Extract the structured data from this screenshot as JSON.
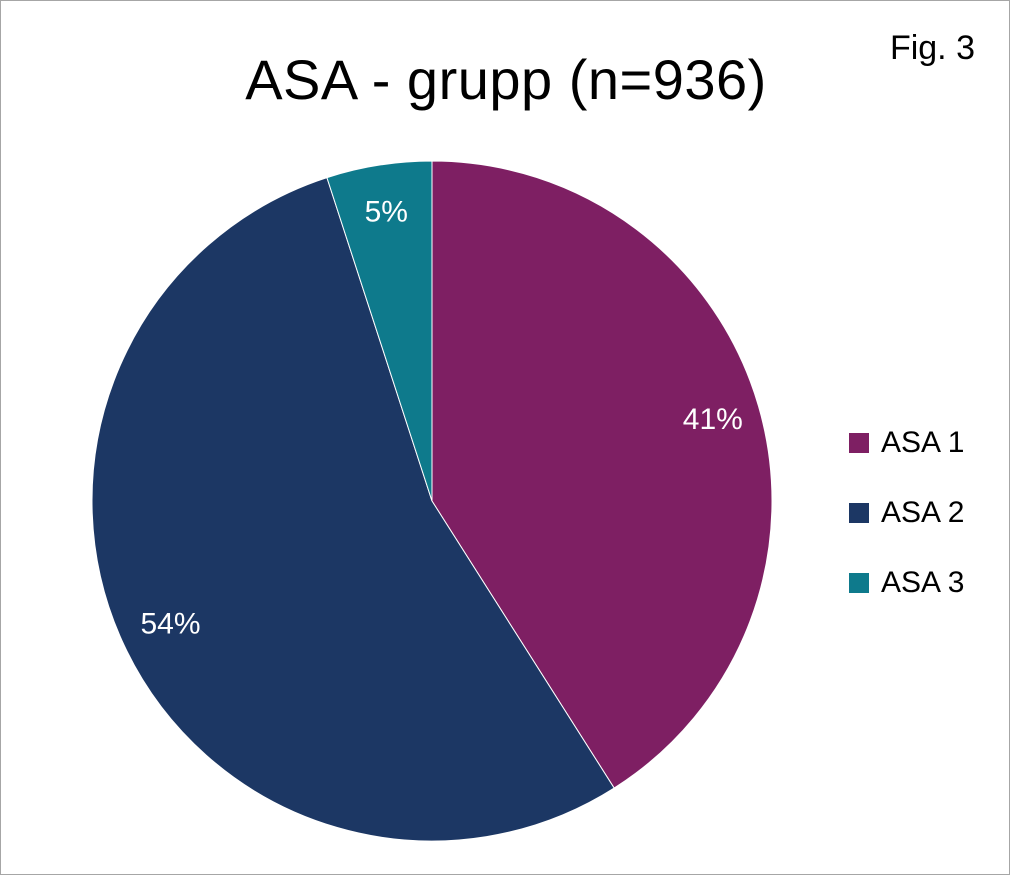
{
  "figure_label": "Fig. 3",
  "chart_data": {
    "type": "pie",
    "title": "ASA - grupp (n=936)",
    "categories": [
      "ASA 1",
      "ASA 2",
      "ASA 3"
    ],
    "values": [
      41,
      54,
      5
    ],
    "labels": [
      "41%",
      "54%",
      "5%"
    ],
    "colors": [
      "#7e1f63",
      "#1c3764",
      "#0e7a8c"
    ],
    "legend_position": "right",
    "start_angle": "12 o'clock",
    "direction": "clockwise"
  }
}
